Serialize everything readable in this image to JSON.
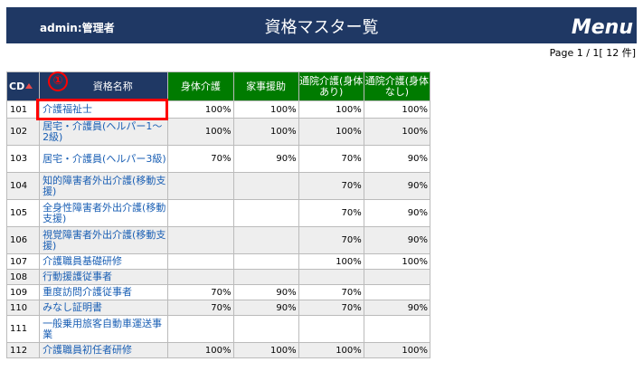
{
  "header": {
    "user": "admin:管理者",
    "title": "資格マスター覧",
    "menu_label": "Menu"
  },
  "pagination": {
    "text": "Page 1 / 1[ 12 件]"
  },
  "callout": {
    "number": "①"
  },
  "columns": {
    "cd": "CD",
    "name": "資格名称",
    "c1": "身体介護",
    "c2": "家事援助",
    "c3": "通院介護(身体あり)",
    "c4": "通院介護(身体なし)"
  },
  "rows": [
    {
      "cd": "101",
      "name": "介護福祉士",
      "v": [
        "100%",
        "100%",
        "100%",
        "100%"
      ]
    },
    {
      "cd": "102",
      "name": "居宅・介護員(ヘルパー1〜2級)",
      "v": [
        "100%",
        "100%",
        "100%",
        "100%"
      ]
    },
    {
      "cd": "103",
      "name": "居宅・介護員(ヘルパー3級)",
      "v": [
        "70%",
        "90%",
        "70%",
        "90%"
      ]
    },
    {
      "cd": "104",
      "name": "知的障害者外出介護(移動支援)",
      "v": [
        "",
        "",
        "70%",
        "90%"
      ]
    },
    {
      "cd": "105",
      "name": "全身性障害者外出介護(移動支援)",
      "v": [
        "",
        "",
        "70%",
        "90%"
      ]
    },
    {
      "cd": "106",
      "name": "視覚障害者外出介護(移動支援)",
      "v": [
        "",
        "",
        "70%",
        "90%"
      ]
    },
    {
      "cd": "107",
      "name": "介護職員基礎研修",
      "v": [
        "",
        "",
        "100%",
        "100%"
      ]
    },
    {
      "cd": "108",
      "name": "行動援護従事者",
      "v": [
        "",
        "",
        "",
        ""
      ]
    },
    {
      "cd": "109",
      "name": "重度訪問介護従事者",
      "v": [
        "70%",
        "90%",
        "70%",
        ""
      ]
    },
    {
      "cd": "110",
      "name": "みなし証明書",
      "v": [
        "70%",
        "90%",
        "70%",
        "90%"
      ]
    },
    {
      "cd": "111",
      "name": "一般乗用旅客自動車運送事業",
      "v": [
        "",
        "",
        "",
        ""
      ]
    },
    {
      "cd": "112",
      "name": "介護職員初任者研修",
      "v": [
        "100%",
        "100%",
        "100%",
        "100%"
      ]
    }
  ]
}
